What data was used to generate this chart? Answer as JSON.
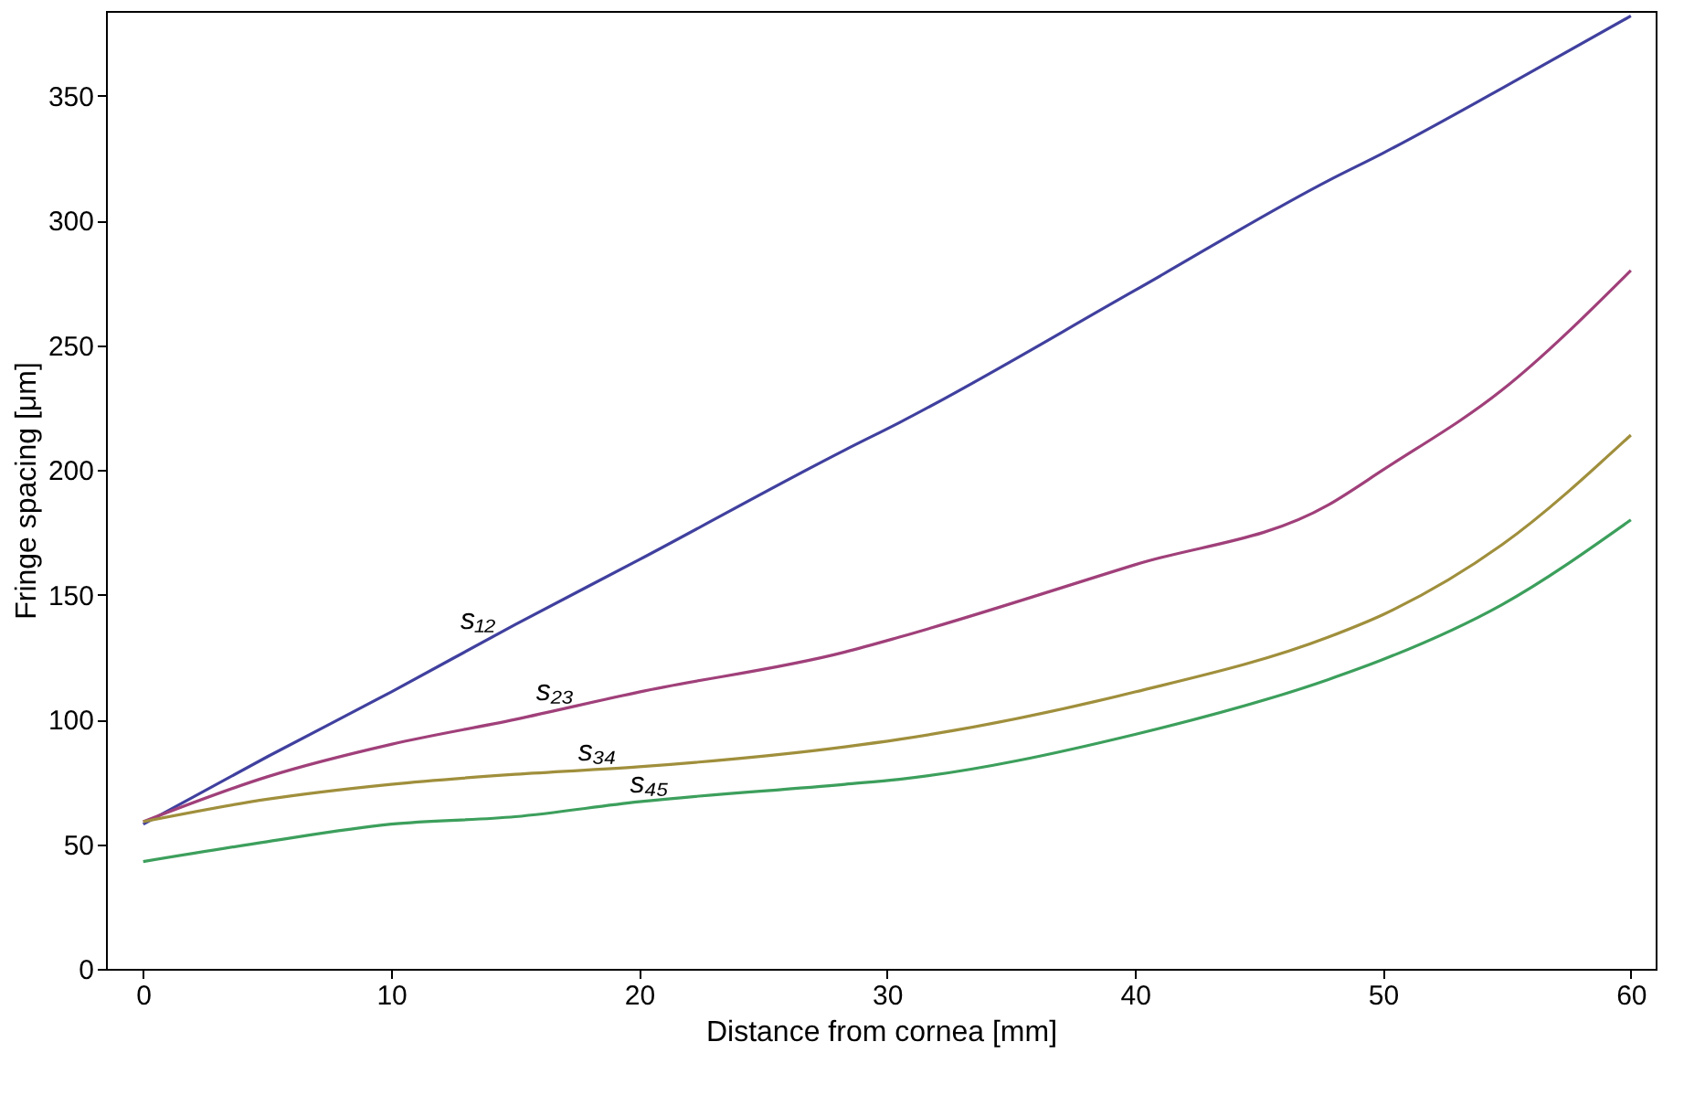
{
  "chart_data": {
    "type": "line",
    "xlabel": "Distance from cornea [mm]",
    "ylabel": "Fringe spacing [μm]",
    "x": [
      0,
      5,
      10,
      15,
      20,
      28.3,
      30.5,
      40,
      47.8,
      50,
      54.8,
      60
    ],
    "series": [
      {
        "color": "#40409f",
        "values": [
          58,
          85,
          111,
          138,
          164,
          208,
          219,
          272,
          316,
          327,
          353,
          382
        ]
      },
      {
        "color": "#a0407a",
        "values": [
          59,
          77,
          90,
          100,
          111,
          127,
          133,
          162,
          186,
          200,
          232,
          280
        ]
      },
      {
        "color": "#a08f3c",
        "values": [
          59,
          68,
          74,
          78,
          81,
          89,
          92,
          111,
          133,
          142,
          170,
          214
        ]
      },
      {
        "color": "#3c9f5c",
        "values": [
          43,
          51,
          58,
          61,
          67,
          74,
          76,
          94,
          116,
          124,
          146,
          180
        ]
      }
    ],
    "annotations": [
      {
        "text": "s₁₂",
        "x": 13.8,
        "y": 132.5
      },
      {
        "text": "s₂₃",
        "x": 16.9,
        "y": 104
      },
      {
        "text": "s₃₄",
        "x": 18.6,
        "y": 80
      },
      {
        "text": "s₄₅",
        "x": 20.7,
        "y": 67
      }
    ],
    "xlim": [
      -1.5,
      61
    ],
    "ylim": [
      0,
      384
    ],
    "xticks": [
      0,
      10,
      20,
      30,
      40,
      50,
      60
    ],
    "yticks": [
      0,
      50,
      100,
      150,
      200,
      250,
      300,
      350
    ],
    "grid": false,
    "legend": false,
    "marker": "none",
    "line_style": "solid"
  }
}
